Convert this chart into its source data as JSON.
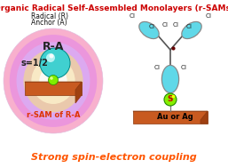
{
  "title": "Organic Radical Self-Assembled Monolayers (r-SAMs)",
  "title_color": "#CC0000",
  "title_fontsize": 6.5,
  "subtitle_line1": "Radical (R)",
  "subtitle_line2": "Anchor (A)",
  "label_RA": "R-A",
  "label_spin": "s=1/2",
  "label_rSAM": "r-SAM of R-A",
  "label_surface": "Au or Ag",
  "bottom_text": "Strong spin-electron coupling",
  "bottom_color": "#FF5500",
  "background_color": "#FFFFFF",
  "platform_color": "#C85A20",
  "platform_top_color": "#E87040",
  "sphere_color": "#40D0D0",
  "anchor_color": "#80EE00",
  "cl_label_color": "#222222",
  "bond_color": "#555555",
  "aromatic_fill": "#60D8E8",
  "sulfur_color": "#88EE00",
  "sulfur_text_color": "#CC0000",
  "radical_dot_color": "#660000"
}
